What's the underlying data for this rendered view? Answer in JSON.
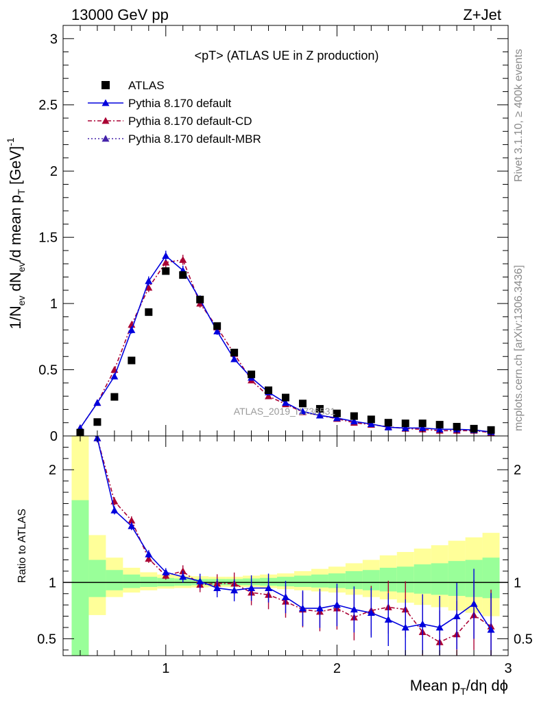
{
  "header": {
    "left": "13000 GeV pp",
    "right": "Z+Jet"
  },
  "side_text": {
    "rivet": "Rivet 3.1.10, ≥ 400k events",
    "mcplots": "mcplots.cern.ch [arXiv:1306.3436]"
  },
  "plot_title": "<pT> (ATLAS UE in Z production)",
  "watermark": "ATLAS_2019_I1736531",
  "axes": {
    "ylabel_main": "1/N_ev dN_ev/d mean p_T [GeV]^-1",
    "ylabel_ratio": "Ratio to ATLAS",
    "xlabel": "Mean p_T/dη dϕ"
  },
  "legend": [
    {
      "name": "ATLAS",
      "style": "marker"
    },
    {
      "name": "Pythia 8.170 default",
      "style": "solid"
    },
    {
      "name": "Pythia 8.170 default-CD",
      "style": "dashdot"
    },
    {
      "name": "Pythia 8.170 default-MBR",
      "style": "dotted"
    }
  ],
  "chart_data": {
    "type": "scatter",
    "xlim": [
      0.4,
      3.0
    ],
    "ylim_main": [
      0,
      3.1
    ],
    "ylim_ratio": [
      0.35,
      2.3
    ],
    "x_ticks": [
      1,
      2,
      3
    ],
    "y_ticks_main": [
      0,
      0.5,
      1,
      1.5,
      2,
      2.5,
      3
    ],
    "y_ticks_main_labels": [
      "0",
      "0.5",
      "1",
      "1.5",
      "2",
      "2.5",
      "3"
    ],
    "y_ticks_ratio": [
      0.5,
      1,
      2
    ],
    "x": [
      0.5,
      0.6,
      0.7,
      0.8,
      0.9,
      1.0,
      1.1,
      1.2,
      1.3,
      1.4,
      1.5,
      1.6,
      1.7,
      1.8,
      1.9,
      2.0,
      2.1,
      2.2,
      2.3,
      2.4,
      2.5,
      2.6,
      2.7,
      2.8,
      2.9
    ],
    "atlas": [
      0.025,
      0.105,
      0.295,
      0.57,
      0.935,
      1.245,
      1.215,
      1.03,
      0.83,
      0.63,
      0.465,
      0.345,
      0.29,
      0.245,
      0.205,
      0.17,
      0.15,
      0.125,
      0.1,
      0.095,
      0.095,
      0.085,
      0.07,
      0.055,
      0.045
    ],
    "pythia_default": [
      0.06,
      0.25,
      0.45,
      0.8,
      1.17,
      1.36,
      1.25,
      1.03,
      0.79,
      0.58,
      0.44,
      0.33,
      0.25,
      0.185,
      0.155,
      0.135,
      0.11,
      0.09,
      0.065,
      0.06,
      0.06,
      0.05,
      0.05,
      0.045,
      0.03
    ],
    "pythia_default_cd": [
      0.06,
      0.25,
      0.5,
      0.84,
      1.12,
      1.31,
      1.33,
      1.0,
      0.82,
      0.62,
      0.42,
      0.3,
      0.24,
      0.18,
      0.155,
      0.13,
      0.1,
      0.085,
      0.07,
      0.055,
      0.05,
      0.04,
      0.04,
      0.04,
      0.025
    ],
    "ratio_default": [
      2.45,
      2.28,
      1.64,
      1.5,
      1.25,
      1.09,
      1.05,
      1.01,
      0.95,
      0.93,
      0.95,
      0.95,
      0.87,
      0.77,
      0.77,
      0.8,
      0.76,
      0.73,
      0.67,
      0.6,
      0.63,
      0.6,
      0.7,
      0.81,
      0.58
    ],
    "ratio_default_cd": [
      2.45,
      2.28,
      1.72,
      1.55,
      1.21,
      1.06,
      1.1,
      0.98,
      0.99,
      0.99,
      0.91,
      0.89,
      0.83,
      0.76,
      0.74,
      0.77,
      0.69,
      0.75,
      0.78,
      0.76,
      0.56,
      0.47,
      0.54,
      0.71,
      0.61
    ],
    "band_yellow_lo": [
      0.3,
      0.71,
      0.87,
      0.91,
      0.93,
      0.945,
      0.95,
      0.955,
      0.96,
      0.96,
      0.96,
      0.95,
      0.94,
      0.93,
      0.92,
      0.91,
      0.89,
      0.87,
      0.85,
      0.82,
      0.8,
      0.78,
      0.75,
      0.73,
      0.7
    ],
    "band_yellow_hi": [
      2.3,
      1.42,
      1.22,
      1.13,
      1.09,
      1.07,
      1.06,
      1.055,
      1.05,
      1.05,
      1.06,
      1.07,
      1.08,
      1.1,
      1.12,
      1.14,
      1.17,
      1.2,
      1.24,
      1.27,
      1.3,
      1.33,
      1.37,
      1.4,
      1.44
    ],
    "band_green_lo": [
      0.3,
      0.87,
      0.93,
      0.95,
      0.96,
      0.965,
      0.97,
      0.975,
      0.975,
      0.975,
      0.975,
      0.97,
      0.965,
      0.96,
      0.955,
      0.95,
      0.94,
      0.93,
      0.92,
      0.91,
      0.9,
      0.89,
      0.88,
      0.87,
      0.86
    ],
    "band_green_hi": [
      1.73,
      1.2,
      1.11,
      1.07,
      1.05,
      1.04,
      1.035,
      1.03,
      1.03,
      1.03,
      1.035,
      1.04,
      1.05,
      1.06,
      1.07,
      1.08,
      1.1,
      1.11,
      1.13,
      1.14,
      1.16,
      1.17,
      1.19,
      1.2,
      1.22
    ],
    "colors": {
      "atlas": "#000000",
      "default": "#0000dd",
      "default_cd": "#aa0033",
      "default_mbr": "#4422aa",
      "band_yellow": "#ffff99",
      "band_green": "#99ff99"
    }
  }
}
